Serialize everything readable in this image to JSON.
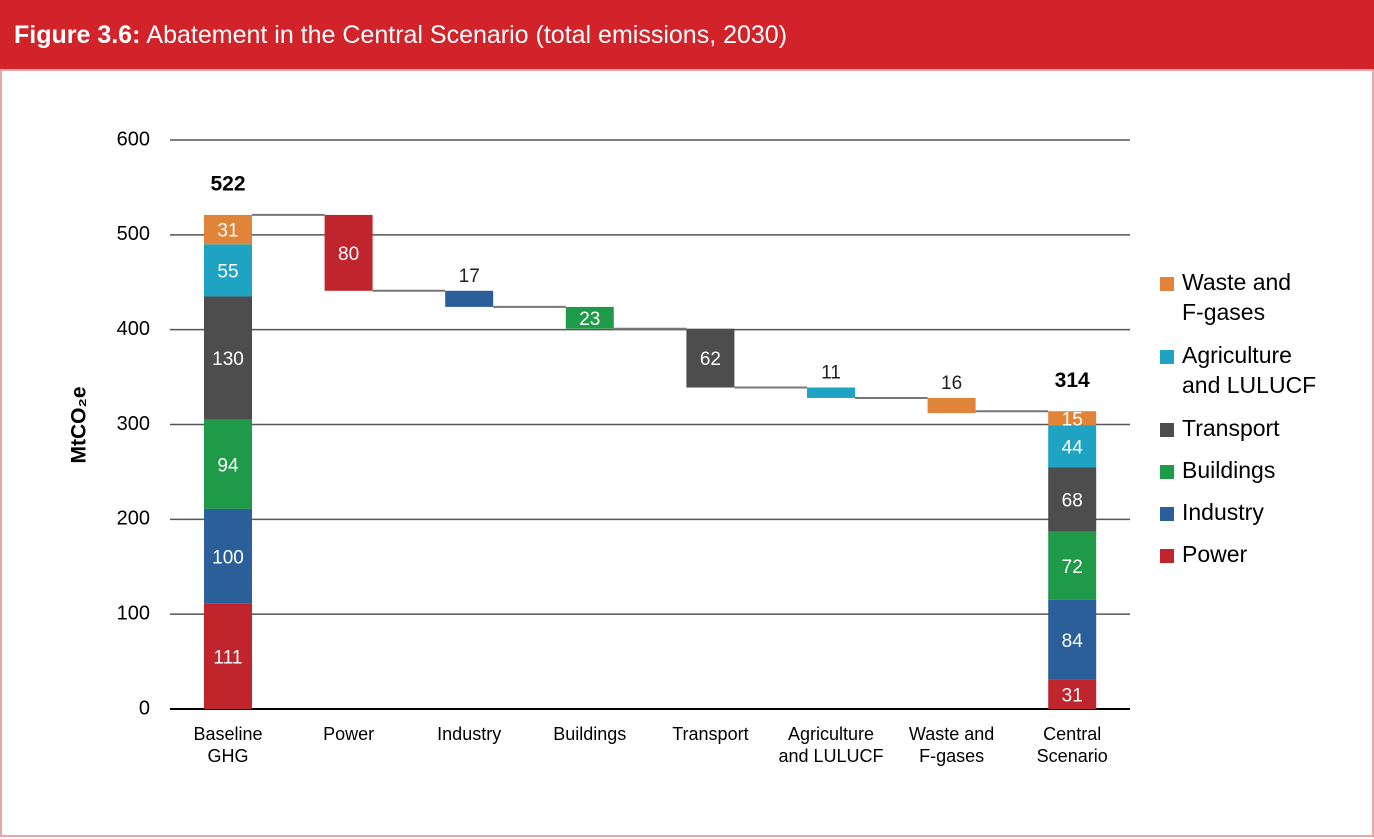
{
  "chart_data": {
    "type": "waterfall",
    "figure_label": "Figure 3.6:",
    "title": "Abatement in the Central Scenario (total emissions, 2030)",
    "y_label": "MtCO₂e",
    "categories": [
      [
        "Baseline",
        "GHG"
      ],
      [
        "Power"
      ],
      [
        "Industry"
      ],
      [
        "Buildings"
      ],
      [
        "Transport"
      ],
      [
        "Agriculture",
        "and LULUCF"
      ],
      [
        "Waste and",
        "F-gases"
      ],
      [
        "Central",
        "Scenario"
      ]
    ],
    "roles": [
      "stack",
      "drop",
      "drop",
      "drop",
      "drop",
      "drop",
      "drop",
      "stack"
    ],
    "series": [
      {
        "name": [
          "Power"
        ],
        "color": "#c0252d",
        "values": [
          111,
          80,
          null,
          null,
          null,
          null,
          null,
          31
        ]
      },
      {
        "name": [
          "Industry"
        ],
        "color": "#2a5f9a",
        "values": [
          100,
          null,
          17,
          null,
          null,
          null,
          null,
          84
        ]
      },
      {
        "name": [
          "Buildings"
        ],
        "color": "#1f9a48",
        "values": [
          94,
          null,
          null,
          23,
          null,
          null,
          null,
          72
        ]
      },
      {
        "name": [
          "Transport"
        ],
        "color": "#4d4d4d",
        "values": [
          130,
          null,
          null,
          null,
          62,
          null,
          null,
          68
        ]
      },
      {
        "name": [
          "Agriculture",
          "and LULUCF"
        ],
        "color": "#1ea3c2",
        "values": [
          55,
          null,
          null,
          null,
          null,
          11,
          null,
          44
        ]
      },
      {
        "name": [
          "Waste and",
          "F-gases"
        ],
        "color": "#e0843a",
        "values": [
          31,
          null,
          null,
          null,
          null,
          null,
          16,
          15
        ]
      }
    ],
    "totals": [
      522,
      null,
      null,
      null,
      null,
      null,
      null,
      314
    ],
    "ylim": [
      0,
      600
    ],
    "yticks": [
      0,
      100,
      200,
      300,
      400,
      500,
      600
    ],
    "grid": true
  }
}
